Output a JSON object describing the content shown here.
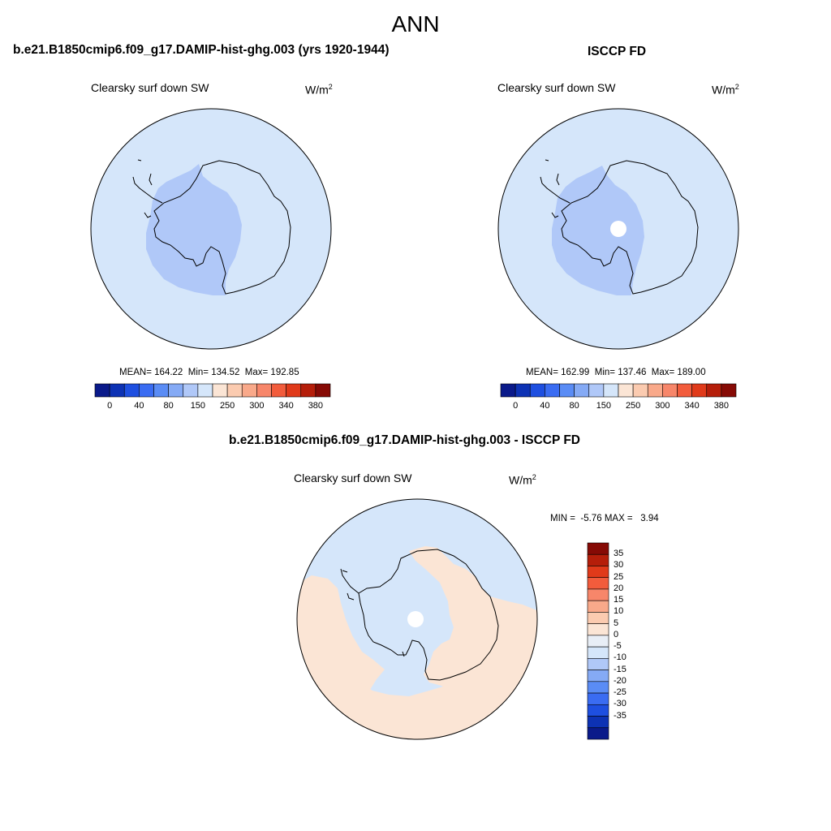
{
  "title": "ANN",
  "panels": {
    "model": {
      "title": "b.e21.B1850cmip6.f09_g17.DAMIP-hist-ghg.003 (yrs 1920-1944)",
      "variable": "Clearsky surf down SW",
      "units": "W/m",
      "units_exp": "2",
      "stats": {
        "mean_label": "MEAN=",
        "mean": "164.22",
        "min_label": "Min=",
        "min": "134.52",
        "max_label": "Max=",
        "max": "192.85"
      }
    },
    "obs": {
      "title": "ISCCP FD",
      "variable": "Clearsky surf down SW",
      "units": "W/m",
      "units_exp": "2",
      "stats": {
        "mean_label": "MEAN=",
        "mean": "162.99",
        "min_label": "Min=",
        "min": "137.46",
        "max_label": "Max=",
        "max": "189.00"
      }
    },
    "diff": {
      "title": "b.e21.B1850cmip6.f09_g17.DAMIP-hist-ghg.003 - ISCCP FD",
      "variable": "Clearsky surf down SW",
      "units": "W/m",
      "units_exp": "2",
      "stats": {
        "min_label": "MIN =",
        "min": "-5.76",
        "max_label": "MAX =",
        "max": "3.94"
      }
    }
  },
  "colorbar_main": {
    "colors": [
      "#0a1a8a",
      "#0d32b4",
      "#1e4fe0",
      "#3a6cf2",
      "#5a8cf5",
      "#85aaf5",
      "#b0c8f8",
      "#d5e6fa",
      "#fbe5d5",
      "#fbcbb0",
      "#f9a98a",
      "#f7866a",
      "#f25c3c",
      "#e03a1a",
      "#b51e0a",
      "#860a05"
    ],
    "tick_labels": [
      "0",
      "40",
      "80",
      "150",
      "250",
      "300",
      "340",
      "380"
    ]
  },
  "colorbar_diff": {
    "colors": [
      "#860a05",
      "#b51e0a",
      "#e03a1a",
      "#f25c3c",
      "#f7866a",
      "#f9a98a",
      "#fbcbb0",
      "#fbe5d5",
      "#e8eef6",
      "#d5e6fa",
      "#b0c8f8",
      "#85aaf5",
      "#5a8cf5",
      "#3a6cf2",
      "#1e4fe0",
      "#0d32b4",
      "#0a1a8a"
    ],
    "tick_labels": [
      "35",
      "30",
      "25",
      "20",
      "15",
      "10",
      "5",
      "0",
      "-5",
      "-10",
      "-15",
      "-20",
      "-25",
      "-30",
      "-35"
    ]
  },
  "map_colors": {
    "ocean_light": "#d5e6fa",
    "land_blue": "#b0c8f8",
    "diff_pos": "#fbe5d5",
    "missing": "#ffffff"
  }
}
